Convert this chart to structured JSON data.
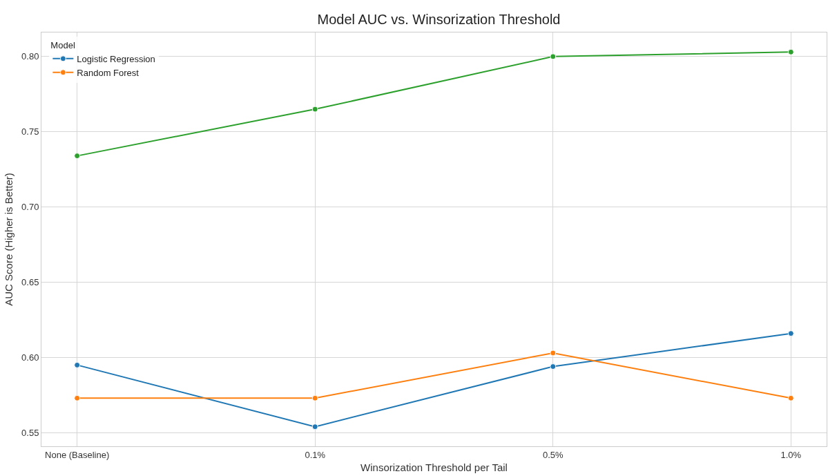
{
  "chart_data": {
    "type": "line",
    "title": "Model AUC vs. Winsorization Threshold",
    "xlabel": "Winsorization Threshold per Tail",
    "ylabel": "AUC Score (Higher is Better)",
    "legend_title": "Model",
    "categories": [
      "None (Baseline)",
      "0.1%",
      "0.5%",
      "1.0%"
    ],
    "series": [
      {
        "name": "Logistic Regression",
        "color": "#1f77b4",
        "values": [
          0.595,
          0.554,
          0.594,
          0.616
        ]
      },
      {
        "name": "Random Forest",
        "color": "#ff7f0e",
        "values": [
          0.573,
          0.573,
          0.603,
          0.573
        ]
      },
      {
        "color": "#2ca02c",
        "values": [
          0.734,
          0.765,
          0.8,
          0.803
        ]
      }
    ],
    "ylim": [
      0.541,
      0.816
    ],
    "yticks": [
      {
        "value": 0.55,
        "label": "0.55"
      },
      {
        "value": 0.6,
        "label": "0.60"
      },
      {
        "value": 0.65,
        "label": "0.65"
      },
      {
        "value": 0.7,
        "label": "0.70"
      },
      {
        "value": 0.75,
        "label": "0.75"
      },
      {
        "value": 0.8,
        "label": "0.80"
      }
    ],
    "grid": true,
    "legend": "top left",
    "marker": "circle",
    "line_style": "solid"
  }
}
